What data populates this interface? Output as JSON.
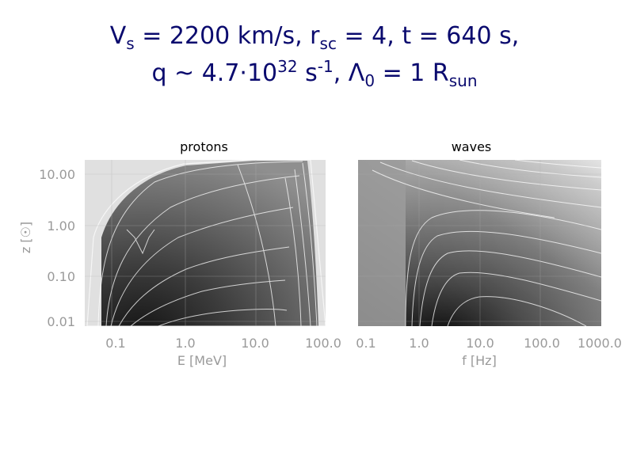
{
  "title": {
    "line1": {
      "v": "V",
      "v_sub": "s",
      "mid": " = 2200 km/s, r",
      "r_sub": "sc",
      "end": " = 4, t = 640 s,"
    },
    "line2": {
      "q": "q ~ 4.7·10",
      "q_sup": "32",
      "s": " s",
      "s_sup": "-1",
      "lam": ", Λ",
      "lam_sub": "0",
      "eq": " = 1 R",
      "r_sub": "sun"
    }
  },
  "colors": {
    "title": "#0a0a6e",
    "axis": "#9a9a9a",
    "background": "#ffffff"
  },
  "chart_data": [
    {
      "type": "heatmap",
      "title": "protons",
      "xlabel": "E [MeV]",
      "ylabel": "z [☉]",
      "xscale": "log",
      "yscale": "log",
      "xlim": [
        0.025,
        100
      ],
      "ylim": [
        0.008,
        16
      ],
      "x_ticks": [
        "0.1",
        "1.0",
        "10.0",
        "100.0"
      ],
      "y_ticks": [
        "10.00",
        "1.00",
        "0.10",
        "0.01"
      ],
      "grid": true,
      "contours": true
    },
    {
      "type": "heatmap",
      "title": "waves",
      "xlabel": "f [Hz]",
      "ylabel": "",
      "xscale": "log",
      "yscale": "log",
      "xlim": [
        0.1,
        1000
      ],
      "ylim": [
        0.008,
        16
      ],
      "x_ticks": [
        "0.1",
        "1.0",
        "10.0",
        "100.0",
        "1000.0"
      ],
      "grid": true,
      "contours": true
    }
  ]
}
